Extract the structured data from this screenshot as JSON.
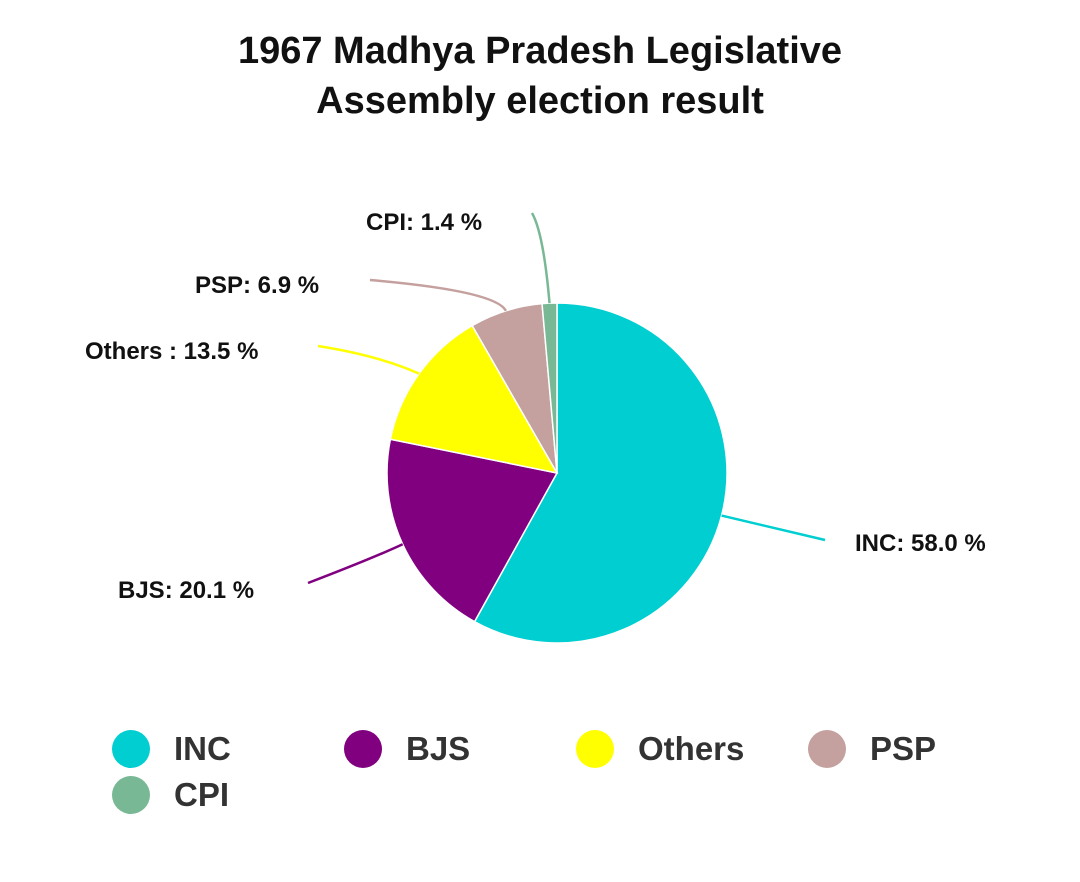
{
  "chart_data": {
    "type": "pie",
    "title": [
      "1967 Madhya Pradesh Legislative",
      "Assembly election result"
    ],
    "slices": [
      {
        "name": "INC",
        "value": 58.0,
        "label": "INC: 58.0 %",
        "color": "#00CED1"
      },
      {
        "name": "BJS",
        "value": 20.1,
        "label": "BJS: 20.1 %",
        "color": "#800080"
      },
      {
        "name": "Others",
        "value": 13.5,
        "label": "Others : 13.5 %",
        "color": "#FFFF00"
      },
      {
        "name": "PSP",
        "value": 6.9,
        "label": "PSP: 6.9 %",
        "color": "#C4A09E"
      },
      {
        "name": "CPI",
        "value": 1.4,
        "label": "CPI: 1.4 %",
        "color": "#78B894"
      }
    ],
    "start_angle": "12 o'clock",
    "direction": "clockwise",
    "legend_position": "bottom"
  }
}
